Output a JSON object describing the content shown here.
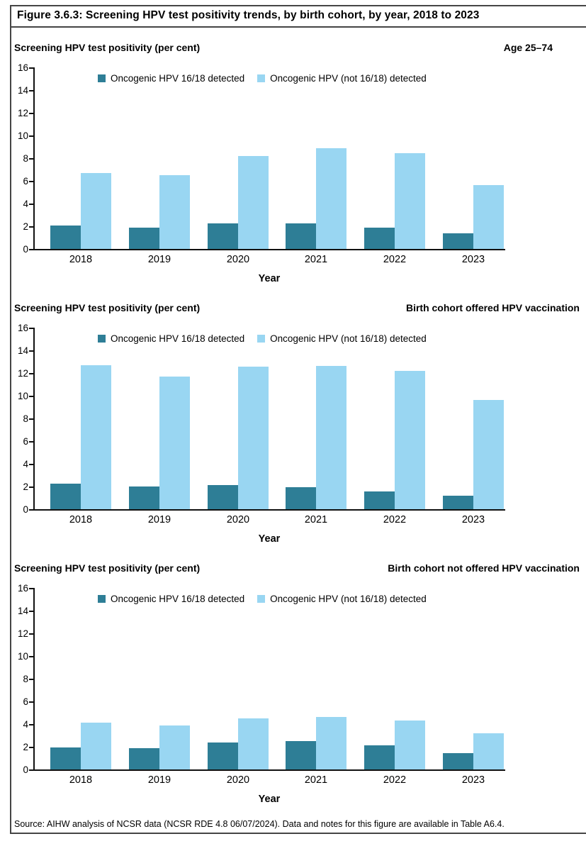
{
  "figure": {
    "title": "Figure 3.6.3: Screening HPV test positivity trends, by birth cohort, by year, 2018 to 2023",
    "source": "Source: AIHW analysis of NCSR data (NCSR RDE 4.8 06/07/2024). Data and notes for this figure are available in Table A6.4."
  },
  "colors": {
    "series_16_18": "#2e7e96",
    "series_not_16_18": "#99d6f2",
    "axis": "#111111",
    "frame": "#454545"
  },
  "chart_data": [
    {
      "type": "bar",
      "title": "Screening HPV test positivity (per cent)",
      "subtitle": "Age 25–74",
      "categories": [
        "2018",
        "2019",
        "2020",
        "2021",
        "2022",
        "2023"
      ],
      "series": [
        {
          "name": "Oncogenic HPV 16/18 detected",
          "color": "#2e7e96",
          "values": [
            2.05,
            1.9,
            2.25,
            2.25,
            1.85,
            1.4
          ]
        },
        {
          "name": "Oncogenic HPV (not 16/18) detected",
          "color": "#99d6f2",
          "values": [
            6.7,
            6.5,
            8.2,
            8.85,
            8.45,
            5.6
          ]
        }
      ],
      "xlabel": "Year",
      "ylabel": "Screening HPV test positivity (per cent)",
      "ylim": [
        0,
        16
      ],
      "ytick_step": 2,
      "grid": false,
      "legend_position": "top-center-inside"
    },
    {
      "type": "bar",
      "title": "Screening HPV test positivity (per cent)",
      "subtitle": "Birth cohort offered HPV vaccination",
      "categories": [
        "2018",
        "2019",
        "2020",
        "2021",
        "2022",
        "2023"
      ],
      "series": [
        {
          "name": "Oncogenic HPV 16/18 detected",
          "color": "#2e7e96",
          "values": [
            2.25,
            2.0,
            2.15,
            1.95,
            1.55,
            1.2
          ]
        },
        {
          "name": "Oncogenic HPV (not 16/18) detected",
          "color": "#99d6f2",
          "values": [
            12.7,
            11.7,
            12.55,
            12.65,
            12.2,
            9.65
          ]
        }
      ],
      "xlabel": "Year",
      "ylabel": "Screening HPV test positivity (per cent)",
      "ylim": [
        0,
        16
      ],
      "ytick_step": 2,
      "grid": false,
      "legend_position": "top-center-inside"
    },
    {
      "type": "bar",
      "title": "Screening HPV test positivity (per cent)",
      "subtitle": "Birth cohort not offered HPV vaccination",
      "categories": [
        "2018",
        "2019",
        "2020",
        "2021",
        "2022",
        "2023"
      ],
      "series": [
        {
          "name": "Oncogenic HPV 16/18 detected",
          "color": "#2e7e96",
          "values": [
            1.95,
            1.85,
            2.35,
            2.5,
            2.1,
            1.45
          ]
        },
        {
          "name": "Oncogenic HPV (not 16/18) detected",
          "color": "#99d6f2",
          "values": [
            4.1,
            3.9,
            4.5,
            4.65,
            4.3,
            3.2
          ]
        }
      ],
      "xlabel": "Year",
      "ylabel": "Screening HPV test positivity (per cent)",
      "ylim": [
        0,
        16
      ],
      "ytick_step": 2,
      "grid": false,
      "legend_position": "top-center-inside"
    }
  ]
}
